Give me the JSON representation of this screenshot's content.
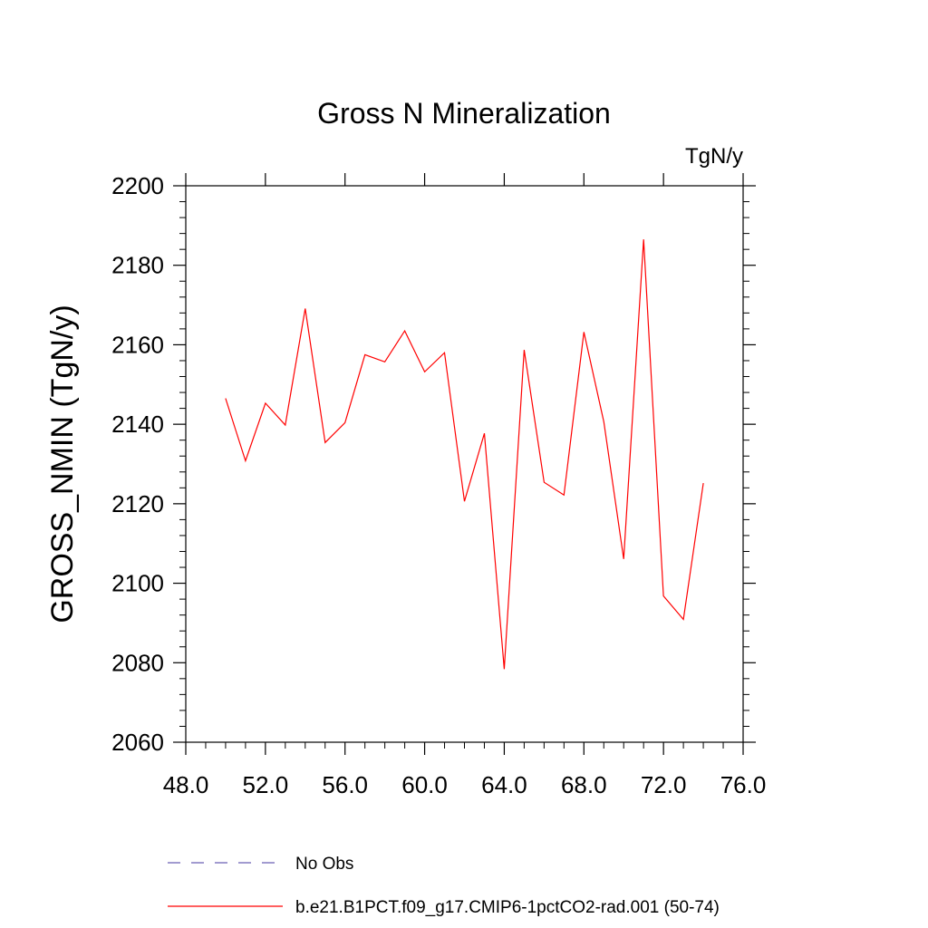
{
  "chart_data": {
    "type": "line",
    "title": "Gross N Mineralization",
    "units_label": "TgN/y",
    "ylabel": "GROSS_NMIN  (TgN/y)",
    "xlabel": "",
    "xlim": [
      48,
      76
    ],
    "ylim": [
      2060,
      2200
    ],
    "x_ticks": [
      48,
      52,
      56,
      60,
      64,
      68,
      72,
      76
    ],
    "x_tick_labels": [
      "48.0",
      "52.0",
      "56.0",
      "60.0",
      "64.0",
      "68.0",
      "72.0",
      "76.0"
    ],
    "y_ticks": [
      2060,
      2080,
      2100,
      2120,
      2140,
      2160,
      2180,
      2200
    ],
    "y_tick_labels": [
      "2060",
      "2080",
      "2100",
      "2120",
      "2140",
      "2160",
      "2180",
      "2200"
    ],
    "grid": false,
    "legend_position": "bottom",
    "series": [
      {
        "name": "b.e21.B1PCT.f09_g17.CMIP6-1pctCO2-rad.001 (50-74)",
        "color": "#ff0000",
        "dash": "solid",
        "x": [
          50,
          51,
          52,
          53,
          54,
          55,
          56,
          57,
          58,
          59,
          60,
          61,
          62,
          63,
          64,
          65,
          66,
          67,
          68,
          69,
          70,
          71,
          72,
          73,
          74
        ],
        "y": [
          2146.5,
          2130.8,
          2145.3,
          2139.8,
          2169.1,
          2135.4,
          2140.4,
          2157.5,
          2155.7,
          2163.5,
          2153.2,
          2158.0,
          2120.6,
          2137.7,
          2078.4,
          2158.7,
          2125.4,
          2122.2,
          2163.2,
          2140.6,
          2106.1,
          2186.5,
          2096.8,
          2090.9,
          2125.2
        ]
      }
    ],
    "legend": [
      {
        "label": "No Obs",
        "color": "#6b5fb5",
        "dash": "dashed"
      },
      {
        "label": "b.e21.B1PCT.f09_g17.CMIP6-1pctCO2-rad.001 (50-74)",
        "color": "#ff0000",
        "dash": "solid"
      }
    ]
  }
}
